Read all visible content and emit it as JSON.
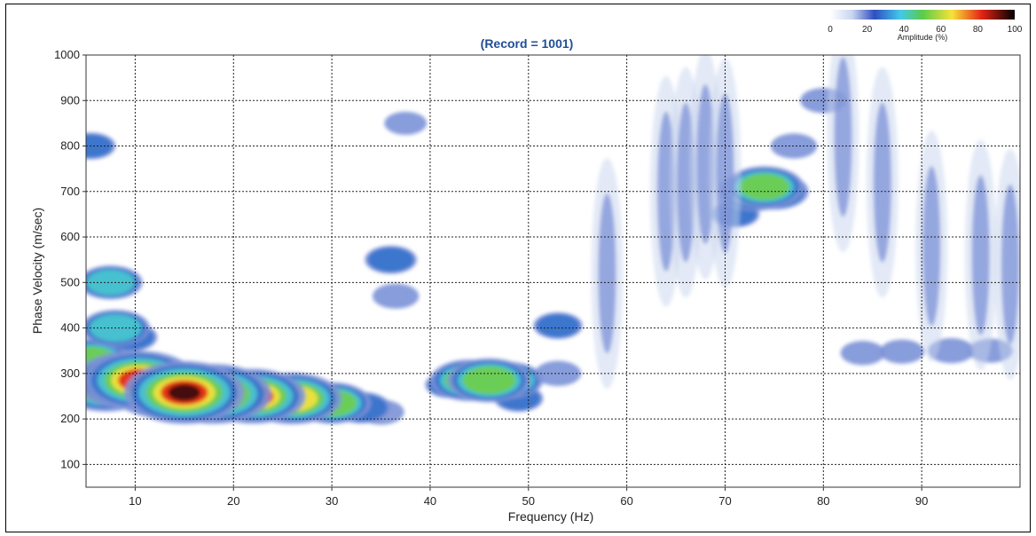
{
  "chart_data": {
    "type": "heatmap",
    "title": "(Record = 1001)",
    "xlabel": "Frequency (Hz)",
    "ylabel": "Phase Velocity (m/sec)",
    "xlim": [
      5,
      100
    ],
    "ylim": [
      50,
      1000
    ],
    "xticks": [
      10,
      20,
      30,
      40,
      50,
      60,
      70,
      80,
      90
    ],
    "yticks": [
      100,
      200,
      300,
      400,
      500,
      600,
      700,
      800,
      900,
      1000
    ],
    "grid": true,
    "colorbar": {
      "label": "Amplitude (%)",
      "ticks": [
        0,
        20,
        40,
        60,
        80,
        100
      ],
      "range": [
        0,
        100
      ],
      "colors": [
        "#ffffff",
        "#c8d4ee",
        "#2f4fc0",
        "#45c8ea",
        "#5acb4a",
        "#f7e23a",
        "#e42415",
        "#000000"
      ],
      "placement": "top-right"
    },
    "features": [
      {
        "name": "fundamental-mode",
        "points": [
          [
            5.5,
            330,
            55
          ],
          [
            7,
            270,
            70
          ],
          [
            9.5,
            285,
            88
          ],
          [
            10.5,
            285,
            90
          ],
          [
            13,
            265,
            88
          ],
          [
            15,
            258,
            98
          ],
          [
            18,
            255,
            92
          ],
          [
            22,
            250,
            82
          ],
          [
            26,
            245,
            75
          ],
          [
            30,
            235,
            55
          ],
          [
            33,
            225,
            35
          ],
          [
            35,
            215,
            22
          ]
        ]
      },
      {
        "name": "low-frequency-tail",
        "points": [
          [
            5.5,
            800,
            25
          ],
          [
            7.5,
            500,
            40
          ],
          [
            8,
            400,
            45
          ],
          [
            9.5,
            380,
            30
          ]
        ]
      },
      {
        "name": "mode-45hz",
        "points": [
          [
            44,
            285,
            55
          ],
          [
            46,
            285,
            60
          ],
          [
            48,
            285,
            45
          ],
          [
            42,
            275,
            25
          ],
          [
            49,
            245,
            25
          ]
        ]
      },
      {
        "name": "blob-36hz",
        "points": [
          [
            36,
            550,
            28
          ],
          [
            36.5,
            470,
            22
          ],
          [
            37.5,
            850,
            18
          ]
        ]
      },
      {
        "name": "cluster-74hz",
        "points": [
          [
            73,
            700,
            50
          ],
          [
            74,
            710,
            55
          ],
          [
            75,
            700,
            45
          ],
          [
            71,
            650,
            25
          ],
          [
            77,
            800,
            22
          ],
          [
            80,
            900,
            22
          ]
        ]
      },
      {
        "name": "blob-53hz",
        "points": [
          [
            53,
            405,
            25
          ],
          [
            53,
            300,
            22
          ]
        ]
      },
      {
        "name": "band-88hz",
        "points": [
          [
            84,
            345,
            20
          ],
          [
            88,
            348,
            20
          ],
          [
            93,
            350,
            22
          ],
          [
            97,
            350,
            20
          ]
        ]
      }
    ]
  }
}
